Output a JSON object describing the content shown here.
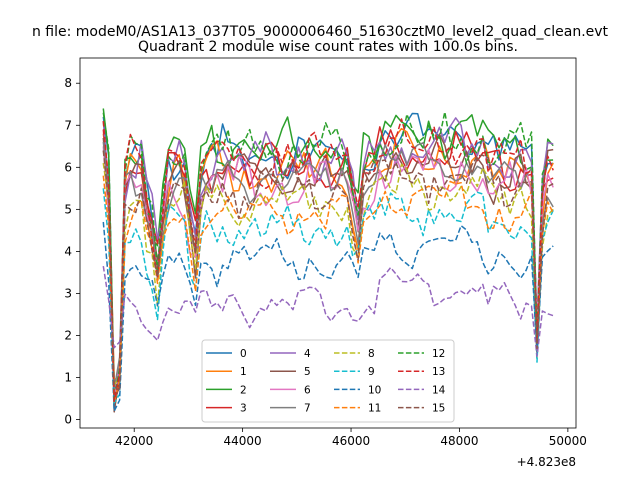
{
  "figure": {
    "suptitle": "n file: modeM0/AS1A13_037T05_9000006460_51630cztM0_level2_quad_clean.evt"
  },
  "chart_data": {
    "type": "line",
    "title": "Quadrant 2 module wise count rates with 100.0s bins.",
    "xlabel": "",
    "ylabel": "",
    "x_offset_label": "+4.823e8",
    "xlim": [
      41000,
      50150
    ],
    "ylim": [
      -0.2,
      8.6
    ],
    "x_ticks": [
      42000,
      44000,
      46000,
      48000,
      50000
    ],
    "x_tick_labels": [
      "42000",
      "44000",
      "46000",
      "48000",
      "50000"
    ],
    "y_ticks": [
      0,
      1,
      2,
      3,
      4,
      5,
      6,
      7,
      8
    ],
    "y_tick_labels": [
      "0",
      "1",
      "2",
      "3",
      "4",
      "5",
      "6",
      "7",
      "8"
    ],
    "grid": false,
    "legend_position": "lower-center",
    "legend_columns": 4,
    "x_start": 41430,
    "x_step": 100,
    "series": [
      {
        "name": "0",
        "color": "#1f77b4",
        "dash": "solid",
        "base": 6.3,
        "amp": 0.35,
        "dipScale": 1.0
      },
      {
        "name": "1",
        "color": "#ff7f0e",
        "dash": "solid",
        "base": 5.9,
        "amp": 0.35,
        "dipScale": 1.0
      },
      {
        "name": "2",
        "color": "#2ca02c",
        "dash": "solid",
        "base": 6.5,
        "amp": 0.4,
        "dipScale": 1.0
      },
      {
        "name": "3",
        "color": "#d62728",
        "dash": "solid",
        "base": 6.0,
        "amp": 0.35,
        "dipScale": 1.0
      },
      {
        "name": "4",
        "color": "#9467bd",
        "dash": "solid",
        "base": 6.2,
        "amp": 0.35,
        "dipScale": 1.0
      },
      {
        "name": "5",
        "color": "#8c564b",
        "dash": "solid",
        "base": 5.8,
        "amp": 0.35,
        "dipScale": 1.0
      },
      {
        "name": "6",
        "color": "#e377c2",
        "dash": "solid",
        "base": 5.6,
        "amp": 0.35,
        "dipScale": 1.0
      },
      {
        "name": "7",
        "color": "#7f7f7f",
        "dash": "solid",
        "base": 5.7,
        "amp": 0.35,
        "dipScale": 1.0
      },
      {
        "name": "8",
        "color": "#bcbd22",
        "dash": "dashed",
        "base": 5.2,
        "amp": 0.3,
        "dipScale": 1.0
      },
      {
        "name": "9",
        "color": "#17becf",
        "dash": "dashed",
        "base": 4.6,
        "amp": 0.3,
        "dipScale": 1.0
      },
      {
        "name": "10",
        "color": "#1f77b4",
        "dash": "dashed",
        "base": 3.8,
        "amp": 0.25,
        "dipScale": 1.0
      },
      {
        "name": "11",
        "color": "#ff7f0e",
        "dash": "dashed",
        "base": 4.9,
        "amp": 0.3,
        "dipScale": 1.0
      },
      {
        "name": "12",
        "color": "#2ca02c",
        "dash": "dashed",
        "base": 6.4,
        "amp": 0.4,
        "dipScale": 1.0
      },
      {
        "name": "13",
        "color": "#d62728",
        "dash": "dashed",
        "base": 6.2,
        "amp": 0.35,
        "dipScale": 1.0
      },
      {
        "name": "14",
        "color": "#9467bd",
        "dash": "dashed",
        "base": 2.75,
        "amp": 0.2,
        "dipScale": 0.6
      },
      {
        "name": "15",
        "color": "#8c564b",
        "dash": "dashed",
        "base": 5.5,
        "amp": 0.35,
        "dipScale": 1.0
      }
    ]
  }
}
